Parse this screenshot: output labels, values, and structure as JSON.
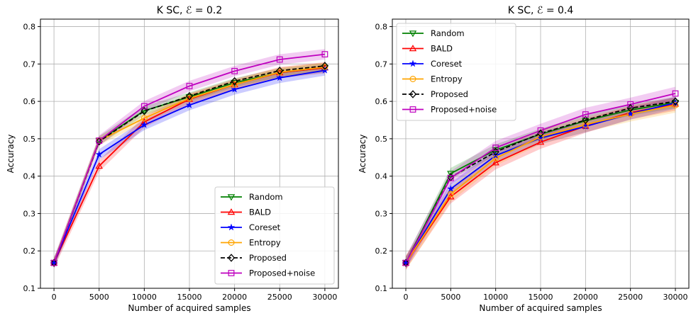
{
  "chart_data": [
    {
      "type": "line",
      "title": "K SC, ℰ = 0.2",
      "xlabel": "Number of acquired samples",
      "ylabel": "Accuracy",
      "xlim": [
        -1500,
        31500
      ],
      "ylim": [
        0.1,
        0.82
      ],
      "xticks": [
        0,
        5000,
        10000,
        15000,
        20000,
        25000,
        30000
      ],
      "yticks": [
        0.1,
        0.2,
        0.3,
        0.4,
        0.5,
        0.6,
        0.7,
        0.8
      ],
      "grid": true,
      "legend_position": "lower-right",
      "x": [
        0,
        5000,
        10000,
        15000,
        20000,
        25000,
        30000
      ],
      "series": [
        {
          "name": "Random",
          "color": "#008000",
          "marker": "triangle-down",
          "dashed": false,
          "values": [
            0.168,
            0.495,
            0.575,
            0.612,
            0.65,
            0.677,
            0.69
          ],
          "band": 0.012
        },
        {
          "name": "BALD",
          "color": "#ff0000",
          "marker": "triangle-up",
          "dashed": false,
          "values": [
            0.168,
            0.427,
            0.545,
            0.606,
            0.645,
            0.677,
            0.69
          ],
          "band": 0.015
        },
        {
          "name": "Coreset",
          "color": "#0000ff",
          "marker": "star",
          "dashed": false,
          "values": [
            0.168,
            0.458,
            0.537,
            0.59,
            0.632,
            0.663,
            0.683
          ],
          "band": 0.014
        },
        {
          "name": "Entropy",
          "color": "#ffa500",
          "marker": "circle",
          "dashed": false,
          "values": [
            0.168,
            0.495,
            0.555,
            0.608,
            0.645,
            0.678,
            0.692
          ],
          "band": 0.012
        },
        {
          "name": "Proposed",
          "color": "#000000",
          "marker": "diamond",
          "dashed": true,
          "values": [
            0.168,
            0.493,
            0.574,
            0.614,
            0.654,
            0.682,
            0.695
          ],
          "band": 0.0
        },
        {
          "name": "Proposed+noise",
          "color": "#bf00bf",
          "marker": "square",
          "dashed": false,
          "values": [
            0.168,
            0.495,
            0.587,
            0.641,
            0.681,
            0.712,
            0.726
          ],
          "band": 0.014
        }
      ]
    },
    {
      "type": "line",
      "title": "K SC, ℰ = 0.4",
      "xlabel": "Number of acquired samples",
      "ylabel": "Accuracy",
      "xlim": [
        -1500,
        31500
      ],
      "ylim": [
        0.1,
        0.82
      ],
      "xticks": [
        0,
        5000,
        10000,
        15000,
        20000,
        25000,
        30000
      ],
      "yticks": [
        0.1,
        0.2,
        0.3,
        0.4,
        0.5,
        0.6,
        0.7,
        0.8
      ],
      "grid": true,
      "legend_position": "upper-left",
      "x": [
        0,
        5000,
        10000,
        15000,
        20000,
        25000,
        30000
      ],
      "series": [
        {
          "name": "Random",
          "color": "#008000",
          "marker": "triangle-down",
          "dashed": false,
          "values": [
            0.168,
            0.407,
            0.47,
            0.512,
            0.548,
            0.577,
            0.597
          ],
          "band": 0.015
        },
        {
          "name": "BALD",
          "color": "#ff0000",
          "marker": "triangle-up",
          "dashed": false,
          "values": [
            0.168,
            0.345,
            0.436,
            0.491,
            0.534,
            0.57,
            0.593
          ],
          "band": 0.018
        },
        {
          "name": "Coreset",
          "color": "#0000ff",
          "marker": "star",
          "dashed": false,
          "values": [
            0.168,
            0.366,
            0.455,
            0.502,
            0.533,
            0.567,
            0.596
          ],
          "band": 0.016
        },
        {
          "name": "Entropy",
          "color": "#ffa500",
          "marker": "circle",
          "dashed": false,
          "values": [
            0.168,
            0.352,
            0.448,
            0.505,
            0.538,
            0.566,
            0.59
          ],
          "band": 0.02
        },
        {
          "name": "Proposed",
          "color": "#000000",
          "marker": "diamond",
          "dashed": true,
          "values": [
            0.168,
            0.397,
            0.465,
            0.514,
            0.55,
            0.582,
            0.6
          ],
          "band": 0.0
        },
        {
          "name": "Proposed+noise",
          "color": "#bf00bf",
          "marker": "square",
          "dashed": false,
          "values": [
            0.168,
            0.395,
            0.476,
            0.522,
            0.565,
            0.592,
            0.621
          ],
          "band": 0.018
        }
      ]
    }
  ]
}
